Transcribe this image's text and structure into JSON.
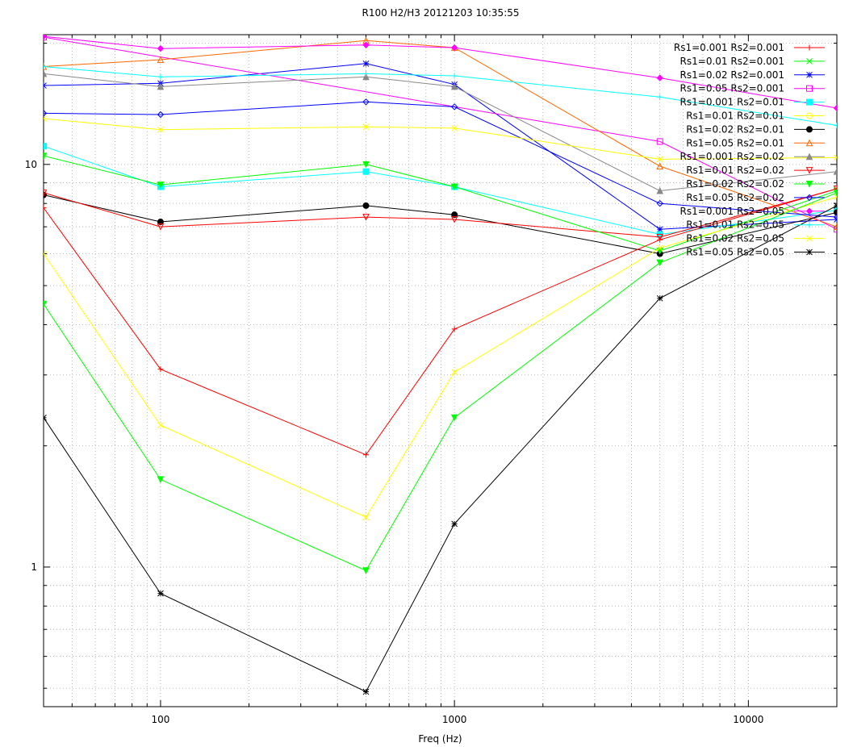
{
  "chart_data": {
    "type": "line",
    "title": "R100 H2/H3 20121203 10:35:55",
    "xlabel": "Freq (Hz)",
    "ylabel": "",
    "x_scale": "log",
    "y_scale": "log",
    "xlim": [
      40,
      20000
    ],
    "ylim": [
      0.45,
      21
    ],
    "x_ticks": [
      100,
      1000,
      10000
    ],
    "x_tick_labels": [
      "100",
      "1000",
      "10000"
    ],
    "y_ticks": [
      1,
      10
    ],
    "y_tick_labels": [
      "1",
      "10"
    ],
    "grid": true,
    "legend_position": "top-right",
    "x": [
      40,
      100,
      500,
      1000,
      5000,
      20000
    ],
    "series": [
      {
        "name": "Rs1=0.001 Rs2=0.001",
        "color": "#ff0000",
        "marker": "plus",
        "values": [
          null,
          null,
          null,
          null,
          null,
          null
        ]
      },
      {
        "name": "Rs1=0.01 Rs2=0.001",
        "color": "#00ff00",
        "marker": "cross",
        "values": [
          null,
          null,
          null,
          null,
          null,
          null
        ]
      },
      {
        "name": "Rs1=0.02 Rs2=0.001",
        "color": "#0000ff",
        "marker": "star",
        "values": [
          15.7,
          15.9,
          17.8,
          15.8,
          6.9,
          7.3
        ]
      },
      {
        "name": "Rs1=0.05 Rs2=0.001",
        "color": "#ff00ff",
        "marker": "box",
        "values": [
          20.7,
          null,
          null,
          null,
          11.4,
          6.9
        ]
      },
      {
        "name": "Rs1=0.001 Rs2=0.01",
        "color": "#00ffff",
        "marker": "filled-box",
        "values": [
          11.1,
          8.8,
          9.6,
          8.8,
          6.7,
          7.7
        ]
      },
      {
        "name": "Rs1=0.01 Rs2=0.01",
        "color": "#ffff00",
        "marker": "circle",
        "values": [
          null,
          null,
          null,
          null,
          null,
          null
        ]
      },
      {
        "name": "Rs1=0.02 Rs2=0.01",
        "color": "#000000",
        "marker": "filled-circle",
        "values": [
          8.4,
          7.2,
          7.9,
          7.5,
          6.0,
          7.6
        ]
      },
      {
        "name": "Rs1=0.05 Rs2=0.01",
        "color": "#ff6600",
        "marker": "triangle",
        "values": [
          17.5,
          18.2,
          20.3,
          19.5,
          9.9,
          7.0
        ]
      },
      {
        "name": "Rs1=0.001 Rs2=0.02",
        "color": "#888888",
        "marker": "filled-triangle",
        "values": [
          16.8,
          15.6,
          16.5,
          15.6,
          8.6,
          9.6
        ]
      },
      {
        "name": "Rs1=0.01 Rs2=0.02",
        "color": "#ff0000",
        "marker": "inverted-triangle",
        "values": [
          8.5,
          7.0,
          7.4,
          7.3,
          6.6,
          8.7
        ]
      },
      {
        "name": "Rs1=0.02 Rs2=0.02",
        "color": "#00ff00",
        "marker": "filled-inverted-triangle",
        "values": [
          10.5,
          8.9,
          10.0,
          8.8,
          6.1,
          8.6
        ]
      },
      {
        "name": "Rs1=0.05 Rs2=0.02",
        "color": "#0000ff",
        "marker": "diamond",
        "values": [
          13.4,
          13.3,
          14.3,
          13.9,
          8.0,
          7.4
        ]
      },
      {
        "name": "Rs1=0.001 Rs2=0.05",
        "color": "#ff00ff",
        "marker": "filled-diamond",
        "values": [
          20.8,
          19.4,
          19.8,
          19.5,
          16.4,
          13.8
        ]
      },
      {
        "name": "Rs1=0.01 Rs2=0.05",
        "color": "#00ffff",
        "marker": "plus",
        "values": [
          17.5,
          16.5,
          16.8,
          16.6,
          14.7,
          12.5
        ]
      },
      {
        "name": "Rs1=0.02 Rs2=0.05",
        "color": "#ffff00",
        "marker": "cross",
        "values": [
          13.0,
          12.2,
          12.4,
          12.3,
          10.3,
          10.4
        ]
      },
      {
        "name": "Rs1=0.05 Rs2=0.05",
        "color": "#000000",
        "marker": "star",
        "values": [
          null,
          null,
          null,
          null,
          null,
          null
        ]
      },
      {
        "name": "",
        "color": "#ff0000",
        "marker": "plus",
        "values": [
          7.8,
          3.1,
          1.9,
          3.9,
          6.5,
          8.7
        ]
      },
      {
        "name": "",
        "color": "#ffff00",
        "marker": "cross",
        "values": [
          6.0,
          2.25,
          1.33,
          3.05,
          6.2,
          8.3
        ]
      },
      {
        "name": "",
        "color": "#00ff00",
        "marker": "filled-inverted-triangle",
        "values": [
          4.5,
          1.65,
          0.98,
          2.35,
          5.7,
          8.5
        ]
      },
      {
        "name": "",
        "color": "#000000",
        "marker": "star",
        "values": [
          2.35,
          0.86,
          0.49,
          1.28,
          4.65,
          7.9
        ]
      }
    ]
  }
}
